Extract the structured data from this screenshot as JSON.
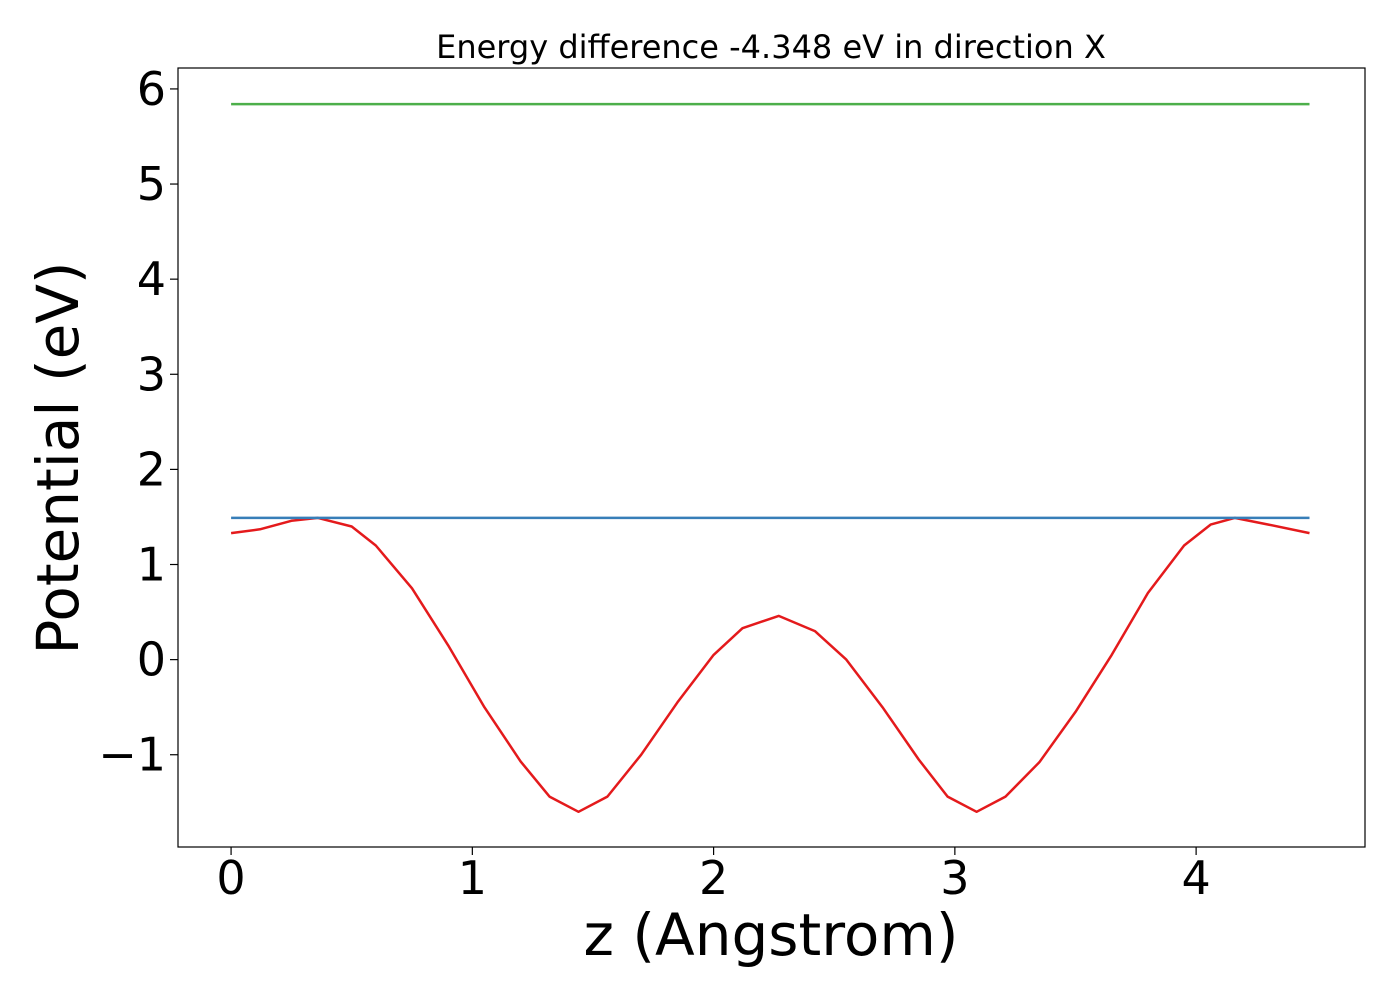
{
  "chart_data": {
    "type": "line",
    "title": "Energy difference -4.348 eV in direction X",
    "xlabel": "z (Angstrom)",
    "ylabel": "Potential (eV)",
    "xlim": [
      -0.22,
      4.7
    ],
    "ylim": [
      -1.97,
      6.22
    ],
    "xticks": [
      0,
      1,
      2,
      3,
      4
    ],
    "xtick_labels": [
      "0",
      "1",
      "2",
      "3",
      "4"
    ],
    "yticks": [
      -1,
      0,
      1,
      2,
      3,
      4,
      5,
      6
    ],
    "ytick_labels": [
      "−1",
      "0",
      "1",
      "2",
      "3",
      "4",
      "5",
      "6"
    ],
    "grid": false,
    "legend": "none",
    "series": [
      {
        "color": "#e41a1c",
        "x": [
          0,
          0.12,
          0.25,
          0.36,
          0.5,
          0.6,
          0.75,
          0.9,
          1.05,
          1.2,
          1.32,
          1.44,
          1.56,
          1.7,
          1.85,
          2.0,
          2.12,
          2.27,
          2.42,
          2.55,
          2.7,
          2.85,
          2.97,
          3.09,
          3.21,
          3.35,
          3.5,
          3.65,
          3.8,
          3.95,
          4.06,
          4.16,
          4.3,
          4.47
        ],
        "y": [
          1.33,
          1.37,
          1.46,
          1.49,
          1.4,
          1.2,
          0.75,
          0.15,
          -0.5,
          -1.07,
          -1.44,
          -1.6,
          -1.44,
          -1.0,
          -0.45,
          0.05,
          0.33,
          0.46,
          0.3,
          0.0,
          -0.5,
          -1.05,
          -1.44,
          -1.6,
          -1.44,
          -1.08,
          -0.55,
          0.05,
          0.7,
          1.2,
          1.42,
          1.49,
          1.42,
          1.33
        ]
      },
      {
        "color": "#377eb8",
        "x": [
          0,
          4.47
        ],
        "y": [
          1.49,
          1.49
        ]
      },
      {
        "color": "#4daf4a",
        "x": [
          0,
          4.47
        ],
        "y": [
          5.84,
          5.84
        ]
      }
    ]
  }
}
